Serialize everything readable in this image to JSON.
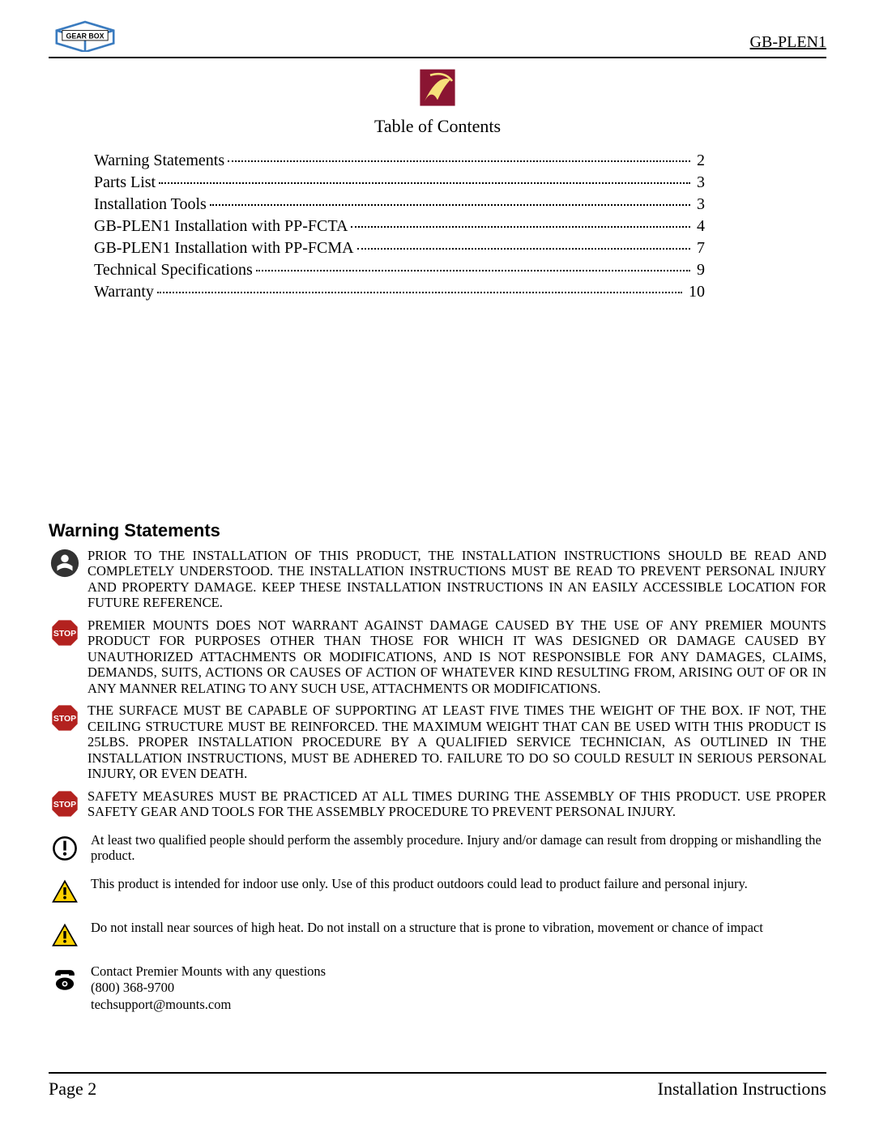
{
  "header": {
    "product_code": "GB-PLEN1",
    "logo_text": "GEAR BOX",
    "logo_colors": {
      "outline": "#3a7bbf",
      "text": "#000000"
    }
  },
  "center_logo": {
    "bg": "#8a1532",
    "accent": "#f6e07a"
  },
  "toc": {
    "title": "Table of Contents",
    "entries": [
      {
        "label": "Warning Statements",
        "page": "2"
      },
      {
        "label": "Parts List",
        "page": "3"
      },
      {
        "label": "Installation Tools",
        "page": "3"
      },
      {
        "label": "GB-PLEN1 Installation with PP-FCTA",
        "page": "4"
      },
      {
        "label": "GB-PLEN1 Installation with PP-FCMA",
        "page": "7"
      },
      {
        "label": "Technical Specifications",
        "page": "9"
      },
      {
        "label": "Warranty",
        "page": "10"
      }
    ]
  },
  "warning_section": {
    "heading": "Warning Statements",
    "stop_color": "#b3221f",
    "caution_color": "#fdd100",
    "blocks": [
      {
        "icon": "read",
        "text": "PRIOR TO THE INSTALLATION OF THIS PRODUCT, THE INSTALLATION INSTRUCTIONS SHOULD BE READ AND COMPLETELY UNDERSTOOD. THE INSTALLATION INSTRUCTIONS MUST BE READ TO PREVENT PERSONAL INJURY AND PROPERTY DAMAGE. KEEP THESE INSTALLATION INSTRUCTIONS IN AN EASILY ACCESSIBLE LOCATION FOR FUTURE REFERENCE."
      },
      {
        "icon": "stop",
        "text": "PREMIER MOUNTS DOES NOT WARRANT AGAINST DAMAGE CAUSED BY THE USE OF ANY PREMIER MOUNTS PRODUCT FOR PURPOSES OTHER THAN THOSE FOR WHICH IT WAS DESIGNED OR DAMAGE CAUSED BY UNAUTHORIZED ATTACHMENTS OR MODIFICATIONS, AND IS NOT RESPONSIBLE FOR ANY DAMAGES, CLAIMS, DEMANDS, SUITS, ACTIONS OR CAUSES OF ACTION OF WHATEVER KIND RESULTING FROM, ARISING OUT OF OR IN ANY MANNER RELATING TO ANY SUCH USE, ATTACHMENTS OR MODIFICATIONS."
      },
      {
        "icon": "stop",
        "text": "THE SURFACE MUST BE CAPABLE OF SUPPORTING AT LEAST FIVE TIMES THE WEIGHT OF THE BOX. IF NOT, THE CEILING STRUCTURE MUST BE REINFORCED. THE MAXIMUM WEIGHT THAT CAN BE USED WITH THIS PRODUCT IS 25LBS. PROPER INSTALLATION PROCEDURE BY A QUALIFIED SERVICE TECHNICIAN, AS OUTLINED IN THE INSTALLATION INSTRUCTIONS, MUST BE ADHERED TO. FAILURE TO DO SO COULD RESULT IN SERIOUS PERSONAL INJURY, OR EVEN DEATH."
      },
      {
        "icon": "stop",
        "text": "SAFETY MEASURES MUST BE PRACTICED AT ALL TIMES DURING THE ASSEMBLY OF THIS PRODUCT. USE PROPER SAFETY GEAR AND TOOLS FOR THE ASSEMBLY PROCEDURE TO PREVENT PERSONAL INJURY."
      }
    ],
    "info_blocks": [
      {
        "icon": "exclaim",
        "text": "At least two qualified people should perform the assembly procedure. Injury and/or damage can result from dropping or mishandling the product."
      },
      {
        "icon": "caution",
        "text": "This product is intended for indoor use only. Use of this product outdoors could lead to product failure and personal injury."
      },
      {
        "icon": "caution",
        "text": "Do not install near sources of high heat. Do not install on a structure that is prone to vibration, movement or chance of impact"
      }
    ],
    "contact": {
      "line1": "Contact Premier Mounts with any questions",
      "line2": "(800) 368-9700",
      "line3": "techsupport@mounts.com"
    }
  },
  "footer": {
    "left": "Page 2",
    "right": "Installation Instructions"
  }
}
